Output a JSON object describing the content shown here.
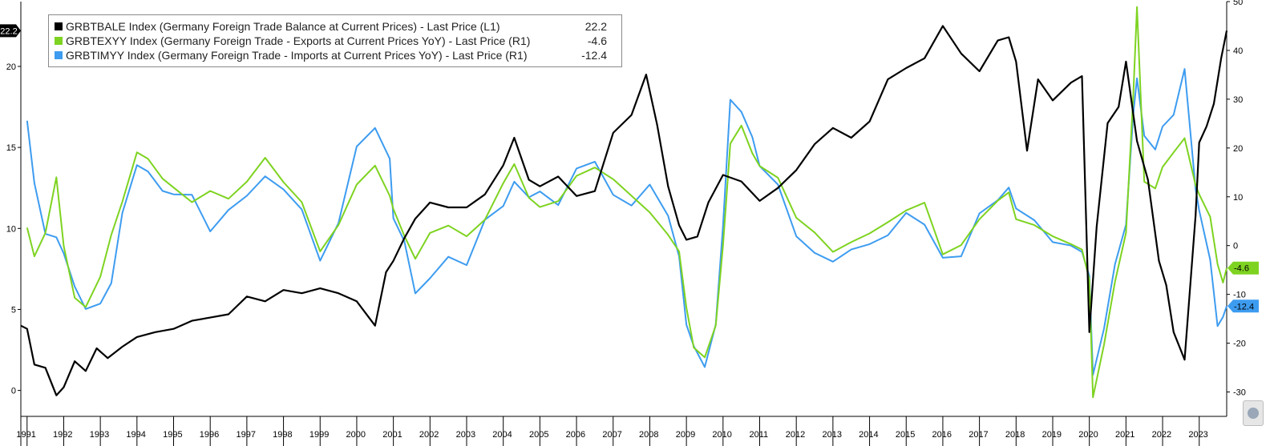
{
  "chart_data": {
    "type": "line",
    "legend_position": "top-left",
    "grid": false,
    "x_axis": {
      "range": [
        1990.83,
        2023.75
      ],
      "labels": [
        "1991",
        "1992",
        "1993",
        "1994",
        "1995",
        "1996",
        "1997",
        "1998",
        "1999",
        "2000",
        "2001",
        "2002",
        "2003",
        "2004",
        "2005",
        "2006",
        "2007",
        "2008",
        "2009",
        "2010",
        "2011",
        "2012",
        "2013",
        "2014",
        "2015",
        "2016",
        "2017",
        "2018",
        "2019",
        "2020",
        "2021",
        "2022",
        "2023"
      ]
    },
    "y_left": {
      "range": [
        -1.6,
        24.0
      ],
      "ticks": [
        "0",
        "5",
        "10",
        "15",
        "20"
      ]
    },
    "y_right": {
      "range": [
        -35.0,
        50.0
      ],
      "ticks": [
        "-30",
        "-20",
        "-10",
        "0",
        "10",
        "20",
        "30",
        "40",
        "50"
      ]
    },
    "series": [
      {
        "name": "GRBTBALE Index (Germany Foreign Trade Balance at Current Prices) - Last Price (L1)",
        "axis": "left",
        "color": "#000000",
        "last_value": "22.2",
        "points": [
          [
            1990.83,
            4.0
          ],
          [
            1991.0,
            3.8
          ],
          [
            1991.2,
            1.6
          ],
          [
            1991.5,
            1.4
          ],
          [
            1991.8,
            -0.3
          ],
          [
            1992.0,
            0.2
          ],
          [
            1992.3,
            1.8
          ],
          [
            1992.6,
            1.2
          ],
          [
            1992.9,
            2.6
          ],
          [
            1993.2,
            2.0
          ],
          [
            1993.6,
            2.7
          ],
          [
            1994.0,
            3.3
          ],
          [
            1994.5,
            3.6
          ],
          [
            1995.0,
            3.8
          ],
          [
            1995.5,
            4.3
          ],
          [
            1996.0,
            4.5
          ],
          [
            1996.5,
            4.7
          ],
          [
            1997.0,
            5.8
          ],
          [
            1997.5,
            5.5
          ],
          [
            1998.0,
            6.2
          ],
          [
            1998.5,
            6.0
          ],
          [
            1999.0,
            6.3
          ],
          [
            1999.5,
            6.0
          ],
          [
            2000.0,
            5.5
          ],
          [
            2000.5,
            4.0
          ],
          [
            2000.8,
            7.3
          ],
          [
            2001.0,
            8.0
          ],
          [
            2001.3,
            9.4
          ],
          [
            2001.6,
            10.6
          ],
          [
            2002.0,
            11.6
          ],
          [
            2002.5,
            11.3
          ],
          [
            2003.0,
            11.3
          ],
          [
            2003.5,
            12.1
          ],
          [
            2004.0,
            13.9
          ],
          [
            2004.3,
            15.6
          ],
          [
            2004.7,
            13.0
          ],
          [
            2005.0,
            12.6
          ],
          [
            2005.5,
            13.2
          ],
          [
            2006.0,
            12.0
          ],
          [
            2006.5,
            12.3
          ],
          [
            2007.0,
            15.9
          ],
          [
            2007.5,
            17.0
          ],
          [
            2007.9,
            19.5
          ],
          [
            2008.2,
            16.4
          ],
          [
            2008.5,
            12.6
          ],
          [
            2008.8,
            10.2
          ],
          [
            2009.0,
            9.3
          ],
          [
            2009.3,
            9.5
          ],
          [
            2009.6,
            11.6
          ],
          [
            2010.0,
            13.3
          ],
          [
            2010.5,
            12.9
          ],
          [
            2011.0,
            11.7
          ],
          [
            2011.5,
            12.5
          ],
          [
            2012.0,
            13.6
          ],
          [
            2012.5,
            15.2
          ],
          [
            2013.0,
            16.2
          ],
          [
            2013.5,
            15.6
          ],
          [
            2014.0,
            16.6
          ],
          [
            2014.5,
            19.2
          ],
          [
            2015.0,
            19.9
          ],
          [
            2015.5,
            20.5
          ],
          [
            2016.0,
            22.5
          ],
          [
            2016.5,
            20.8
          ],
          [
            2017.0,
            19.7
          ],
          [
            2017.5,
            21.6
          ],
          [
            2017.8,
            21.8
          ],
          [
            2018.0,
            20.3
          ],
          [
            2018.3,
            14.8
          ],
          [
            2018.6,
            19.2
          ],
          [
            2019.0,
            17.9
          ],
          [
            2019.5,
            19.0
          ],
          [
            2019.8,
            19.4
          ],
          [
            2020.0,
            3.6
          ],
          [
            2020.2,
            10.1
          ],
          [
            2020.5,
            16.5
          ],
          [
            2020.8,
            17.5
          ],
          [
            2021.0,
            20.3
          ],
          [
            2021.3,
            15.4
          ],
          [
            2021.6,
            13.0
          ],
          [
            2021.9,
            8.0
          ],
          [
            2022.1,
            6.5
          ],
          [
            2022.3,
            3.6
          ],
          [
            2022.6,
            1.9
          ],
          [
            2022.9,
            10.8
          ],
          [
            2023.0,
            15.3
          ],
          [
            2023.2,
            16.3
          ],
          [
            2023.4,
            17.7
          ],
          [
            2023.6,
            20.5
          ],
          [
            2023.75,
            22.2
          ]
        ]
      },
      {
        "name": "GRBTEXYY Index (Germany Foreign Trade - Exports at Current Prices YoY) - Last Price (R1)",
        "axis": "right",
        "color": "#7ed321",
        "last_value": "-4.6",
        "points": [
          [
            1991.0,
            3.7
          ],
          [
            1991.2,
            -2.2
          ],
          [
            1991.5,
            2.6
          ],
          [
            1991.8,
            14.0
          ],
          [
            1992.0,
            -0.1
          ],
          [
            1992.3,
            -10.7
          ],
          [
            1992.6,
            -12.6
          ],
          [
            1993.0,
            -6.4
          ],
          [
            1993.3,
            2.2
          ],
          [
            1993.6,
            9.0
          ],
          [
            1994.0,
            19.1
          ],
          [
            1994.3,
            17.8
          ],
          [
            1994.7,
            13.7
          ],
          [
            1995.0,
            11.9
          ],
          [
            1995.5,
            8.9
          ],
          [
            1996.0,
            11.2
          ],
          [
            1996.5,
            9.6
          ],
          [
            1997.0,
            13.1
          ],
          [
            1997.5,
            18.0
          ],
          [
            1998.0,
            13.0
          ],
          [
            1998.5,
            8.9
          ],
          [
            1999.0,
            -1.2
          ],
          [
            1999.5,
            4.2
          ],
          [
            2000.0,
            12.5
          ],
          [
            2000.5,
            16.4
          ],
          [
            2000.9,
            10.2
          ],
          [
            2001.0,
            7.5
          ],
          [
            2001.3,
            2.0
          ],
          [
            2001.6,
            -2.7
          ],
          [
            2002.0,
            2.6
          ],
          [
            2002.5,
            4.1
          ],
          [
            2003.0,
            1.9
          ],
          [
            2003.5,
            5.3
          ],
          [
            2004.0,
            12.8
          ],
          [
            2004.3,
            16.7
          ],
          [
            2004.7,
            9.8
          ],
          [
            2005.0,
            7.9
          ],
          [
            2005.5,
            9.1
          ],
          [
            2006.0,
            14.3
          ],
          [
            2006.5,
            16.0
          ],
          [
            2007.0,
            13.6
          ],
          [
            2007.5,
            10.2
          ],
          [
            2008.0,
            6.8
          ],
          [
            2008.5,
            2.2
          ],
          [
            2008.8,
            -1.2
          ],
          [
            2009.0,
            -12.7
          ],
          [
            2009.2,
            -20.9
          ],
          [
            2009.5,
            -22.9
          ],
          [
            2009.8,
            -16.4
          ],
          [
            2010.0,
            0.1
          ],
          [
            2010.2,
            20.9
          ],
          [
            2010.5,
            24.6
          ],
          [
            2010.8,
            18.9
          ],
          [
            2011.0,
            16.3
          ],
          [
            2011.5,
            13.9
          ],
          [
            2012.0,
            5.7
          ],
          [
            2012.5,
            2.7
          ],
          [
            2013.0,
            -1.3
          ],
          [
            2013.5,
            0.7
          ],
          [
            2014.0,
            2.5
          ],
          [
            2014.5,
            4.8
          ],
          [
            2015.0,
            7.2
          ],
          [
            2015.5,
            8.8
          ],
          [
            2016.0,
            -1.8
          ],
          [
            2016.5,
            0.1
          ],
          [
            2017.0,
            5.4
          ],
          [
            2017.5,
            9.2
          ],
          [
            2017.8,
            10.9
          ],
          [
            2018.0,
            5.4
          ],
          [
            2018.5,
            4.2
          ],
          [
            2019.0,
            1.9
          ],
          [
            2019.5,
            0.3
          ],
          [
            2019.8,
            -0.8
          ],
          [
            2020.0,
            -7.0
          ],
          [
            2020.1,
            -31.1
          ],
          [
            2020.4,
            -20.3
          ],
          [
            2020.7,
            -7.4
          ],
          [
            2021.0,
            2.6
          ],
          [
            2021.2,
            30.9
          ],
          [
            2021.3,
            48.9
          ],
          [
            2021.5,
            13.1
          ],
          [
            2021.8,
            11.7
          ],
          [
            2022.0,
            16.1
          ],
          [
            2022.3,
            19.1
          ],
          [
            2022.6,
            22.0
          ],
          [
            2022.9,
            12.4
          ],
          [
            2023.0,
            10.5
          ],
          [
            2023.3,
            5.9
          ],
          [
            2023.5,
            -3.8
          ],
          [
            2023.65,
            -7.6
          ],
          [
            2023.75,
            -4.6
          ]
        ]
      },
      {
        "name": "GRBTIMYY Index (Germany Foreign Trade - Imports at Current Prices YoY) - Last Price (R1)",
        "axis": "right",
        "color": "#3d9cf0",
        "last_value": "-12.4",
        "points": [
          [
            1991.0,
            25.6
          ],
          [
            1991.2,
            12.8
          ],
          [
            1991.5,
            2.4
          ],
          [
            1991.8,
            1.7
          ],
          [
            1992.0,
            -1.6
          ],
          [
            1992.3,
            -8.4
          ],
          [
            1992.6,
            -13.0
          ],
          [
            1993.0,
            -11.9
          ],
          [
            1993.3,
            -7.7
          ],
          [
            1993.6,
            6.7
          ],
          [
            1994.0,
            16.5
          ],
          [
            1994.3,
            15.2
          ],
          [
            1994.7,
            11.2
          ],
          [
            1995.0,
            10.5
          ],
          [
            1995.5,
            10.4
          ],
          [
            1996.0,
            2.9
          ],
          [
            1996.5,
            7.3
          ],
          [
            1997.0,
            10.2
          ],
          [
            1997.5,
            14.2
          ],
          [
            1998.0,
            11.5
          ],
          [
            1998.5,
            7.4
          ],
          [
            1999.0,
            -3.1
          ],
          [
            1999.5,
            4.6
          ],
          [
            2000.0,
            20.3
          ],
          [
            2000.5,
            24.1
          ],
          [
            2000.9,
            17.8
          ],
          [
            2001.0,
            5.6
          ],
          [
            2001.3,
            0.9
          ],
          [
            2001.6,
            -9.8
          ],
          [
            2002.0,
            -6.7
          ],
          [
            2002.5,
            -2.3
          ],
          [
            2003.0,
            -4.0
          ],
          [
            2003.5,
            5.3
          ],
          [
            2004.0,
            8.1
          ],
          [
            2004.3,
            13.1
          ],
          [
            2004.7,
            9.9
          ],
          [
            2005.0,
            11.1
          ],
          [
            2005.5,
            8.3
          ],
          [
            2006.0,
            15.8
          ],
          [
            2006.5,
            17.2
          ],
          [
            2007.0,
            10.4
          ],
          [
            2007.5,
            8.2
          ],
          [
            2008.0,
            12.5
          ],
          [
            2008.5,
            6.1
          ],
          [
            2008.8,
            -2.2
          ],
          [
            2009.0,
            -16.2
          ],
          [
            2009.2,
            -20.6
          ],
          [
            2009.5,
            -24.9
          ],
          [
            2009.8,
            -16.2
          ],
          [
            2010.0,
            4.1
          ],
          [
            2010.2,
            29.9
          ],
          [
            2010.5,
            27.4
          ],
          [
            2010.8,
            22.2
          ],
          [
            2011.0,
            16.3
          ],
          [
            2011.5,
            12.5
          ],
          [
            2012.0,
            1.9
          ],
          [
            2012.5,
            -1.5
          ],
          [
            2013.0,
            -3.3
          ],
          [
            2013.5,
            -0.8
          ],
          [
            2014.0,
            0.3
          ],
          [
            2014.5,
            2.1
          ],
          [
            2015.0,
            6.7
          ],
          [
            2015.5,
            4.3
          ],
          [
            2016.0,
            -2.5
          ],
          [
            2016.5,
            -2.2
          ],
          [
            2017.0,
            6.6
          ],
          [
            2017.5,
            9.3
          ],
          [
            2017.8,
            11.9
          ],
          [
            2018.0,
            7.6
          ],
          [
            2018.5,
            5.2
          ],
          [
            2019.0,
            0.7
          ],
          [
            2019.5,
            0.0
          ],
          [
            2019.8,
            -1.3
          ],
          [
            2020.0,
            -6.2
          ],
          [
            2020.1,
            -26.5
          ],
          [
            2020.4,
            -17.0
          ],
          [
            2020.7,
            -3.8
          ],
          [
            2021.0,
            4.3
          ],
          [
            2021.2,
            27.0
          ],
          [
            2021.3,
            34.3
          ],
          [
            2021.5,
            22.5
          ],
          [
            2021.8,
            19.7
          ],
          [
            2022.0,
            24.4
          ],
          [
            2022.3,
            26.8
          ],
          [
            2022.6,
            36.2
          ],
          [
            2022.9,
            11.6
          ],
          [
            2023.0,
            7.2
          ],
          [
            2023.3,
            -2.9
          ],
          [
            2023.5,
            -16.5
          ],
          [
            2023.65,
            -14.6
          ],
          [
            2023.75,
            -12.4
          ]
        ]
      }
    ]
  }
}
